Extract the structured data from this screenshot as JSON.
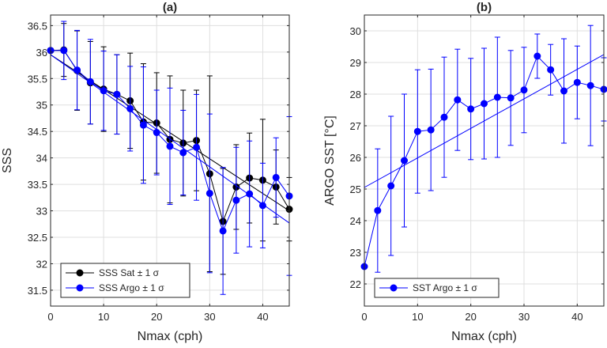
{
  "chart_data": [
    {
      "type": "line",
      "panel_label": "(a)",
      "xlabel": "Nmax (cph)",
      "ylabel": "SSS",
      "xlim": [
        0,
        45
      ],
      "ylim": [
        31.2,
        36.7
      ],
      "xticks": [
        0,
        10,
        20,
        30,
        40
      ],
      "yticks": [
        31.5,
        32,
        32.5,
        33,
        33.5,
        34,
        34.5,
        35,
        35.5,
        36,
        36.5
      ],
      "grid": true,
      "legend_position": "bottom-left",
      "series": [
        {
          "name": "SSS Sat ± 1 σ",
          "color": "#000000",
          "x": [
            0,
            2.5,
            5,
            7.5,
            10,
            12.5,
            15,
            17.5,
            20,
            22.5,
            25,
            27.5,
            30,
            32.5,
            35,
            37.5,
            40,
            42.5,
            45
          ],
          "y": [
            36.03,
            36.04,
            35.65,
            35.42,
            35.3,
            35.2,
            35.08,
            34.68,
            34.66,
            34.35,
            34.28,
            34.33,
            33.7,
            32.8,
            33.45,
            33.62,
            33.58,
            33.45,
            33.03
          ],
          "err": [
            0.0,
            0.5,
            0.75,
            0.78,
            0.8,
            0.75,
            0.9,
            1.1,
            0.95,
            1.2,
            1.0,
            0.95,
            1.85,
            1.0,
            0.8,
            0.85,
            1.15,
            0.7,
            0.6
          ],
          "fit": [
            35.95,
            33.0
          ]
        },
        {
          "name": "SSS Argo ± 1 σ",
          "color": "#0000ff",
          "x": [
            0,
            2.5,
            5,
            7.5,
            10,
            12.5,
            15,
            17.5,
            20,
            22.5,
            25,
            27.5,
            30,
            32.5,
            35,
            37.5,
            40,
            42.5,
            45
          ],
          "y": [
            36.03,
            36.03,
            35.66,
            35.44,
            35.27,
            35.2,
            34.93,
            34.62,
            34.48,
            34.22,
            34.1,
            34.2,
            33.33,
            32.62,
            33.2,
            33.32,
            33.1,
            33.63,
            33.28
          ],
          "err": [
            0.0,
            0.55,
            0.75,
            0.8,
            0.75,
            0.75,
            0.8,
            1.1,
            0.8,
            1.1,
            0.8,
            1.0,
            1.5,
            1.2,
            1.0,
            1.0,
            0.8,
            0.75,
            1.5
          ],
          "fit": [
            35.95,
            32.77
          ]
        }
      ]
    },
    {
      "type": "line",
      "panel_label": "(b)",
      "xlabel": "Nmax (cph)",
      "ylabel": "ARGO SST [°C]",
      "xlim": [
        0,
        45
      ],
      "ylim": [
        21.3,
        30.5
      ],
      "xticks": [
        0,
        10,
        20,
        30,
        40
      ],
      "yticks": [
        22,
        23,
        24,
        25,
        26,
        27,
        28,
        29,
        30
      ],
      "grid": true,
      "legend_position": "bottom-left",
      "series": [
        {
          "name": "SST Argo ± 1 σ",
          "color": "#0000ff",
          "x": [
            0,
            2.5,
            5,
            7.5,
            10,
            12.5,
            15,
            17.5,
            20,
            22.5,
            25,
            27.5,
            30,
            32.5,
            35,
            37.5,
            40,
            42.5,
            45
          ],
          "y": [
            22.55,
            24.32,
            25.1,
            25.9,
            26.82,
            26.87,
            27.27,
            27.82,
            27.53,
            27.7,
            27.9,
            27.88,
            28.13,
            29.2,
            28.77,
            28.1,
            28.37,
            28.27,
            28.15
          ],
          "err": [
            0.0,
            1.95,
            2.2,
            2.1,
            1.95,
            1.92,
            1.9,
            1.6,
            1.6,
            1.75,
            1.9,
            1.5,
            1.35,
            0.7,
            0.8,
            1.65,
            1.15,
            1.9,
            1.0
          ],
          "fit": [
            25.05,
            29.25
          ]
        }
      ]
    }
  ]
}
